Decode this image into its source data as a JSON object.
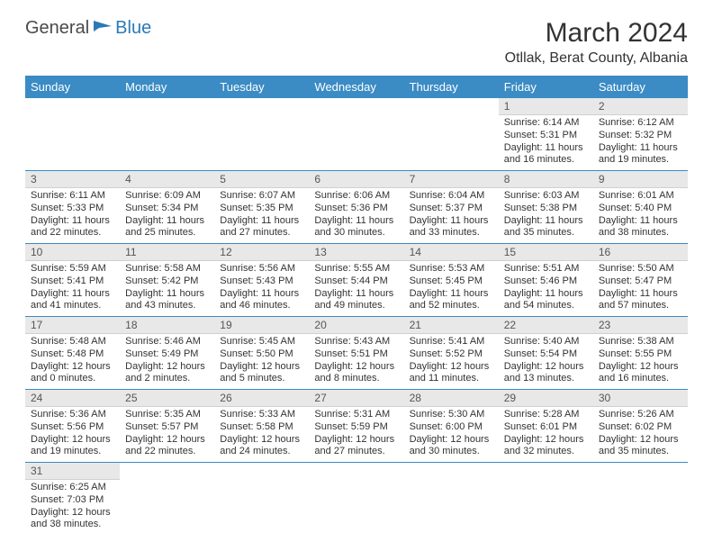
{
  "logo": {
    "general": "General",
    "blue": "Blue"
  },
  "title": "March 2024",
  "location": "Otllak, Berat County, Albania",
  "colors": {
    "header_bg": "#3b8bc4",
    "header_fg": "#ffffff",
    "daynum_bg": "#e8e8e8",
    "row_border": "#3b8bc4",
    "logo_blue": "#2a7ab8",
    "text": "#333333"
  },
  "weekdays": [
    "Sunday",
    "Monday",
    "Tuesday",
    "Wednesday",
    "Thursday",
    "Friday",
    "Saturday"
  ],
  "days": [
    {
      "n": 1,
      "sr": "6:14 AM",
      "ss": "5:31 PM",
      "dl": "11 hours and 16 minutes."
    },
    {
      "n": 2,
      "sr": "6:12 AM",
      "ss": "5:32 PM",
      "dl": "11 hours and 19 minutes."
    },
    {
      "n": 3,
      "sr": "6:11 AM",
      "ss": "5:33 PM",
      "dl": "11 hours and 22 minutes."
    },
    {
      "n": 4,
      "sr": "6:09 AM",
      "ss": "5:34 PM",
      "dl": "11 hours and 25 minutes."
    },
    {
      "n": 5,
      "sr": "6:07 AM",
      "ss": "5:35 PM",
      "dl": "11 hours and 27 minutes."
    },
    {
      "n": 6,
      "sr": "6:06 AM",
      "ss": "5:36 PM",
      "dl": "11 hours and 30 minutes."
    },
    {
      "n": 7,
      "sr": "6:04 AM",
      "ss": "5:37 PM",
      "dl": "11 hours and 33 minutes."
    },
    {
      "n": 8,
      "sr": "6:03 AM",
      "ss": "5:38 PM",
      "dl": "11 hours and 35 minutes."
    },
    {
      "n": 9,
      "sr": "6:01 AM",
      "ss": "5:40 PM",
      "dl": "11 hours and 38 minutes."
    },
    {
      "n": 10,
      "sr": "5:59 AM",
      "ss": "5:41 PM",
      "dl": "11 hours and 41 minutes."
    },
    {
      "n": 11,
      "sr": "5:58 AM",
      "ss": "5:42 PM",
      "dl": "11 hours and 43 minutes."
    },
    {
      "n": 12,
      "sr": "5:56 AM",
      "ss": "5:43 PM",
      "dl": "11 hours and 46 minutes."
    },
    {
      "n": 13,
      "sr": "5:55 AM",
      "ss": "5:44 PM",
      "dl": "11 hours and 49 minutes."
    },
    {
      "n": 14,
      "sr": "5:53 AM",
      "ss": "5:45 PM",
      "dl": "11 hours and 52 minutes."
    },
    {
      "n": 15,
      "sr": "5:51 AM",
      "ss": "5:46 PM",
      "dl": "11 hours and 54 minutes."
    },
    {
      "n": 16,
      "sr": "5:50 AM",
      "ss": "5:47 PM",
      "dl": "11 hours and 57 minutes."
    },
    {
      "n": 17,
      "sr": "5:48 AM",
      "ss": "5:48 PM",
      "dl": "12 hours and 0 minutes."
    },
    {
      "n": 18,
      "sr": "5:46 AM",
      "ss": "5:49 PM",
      "dl": "12 hours and 2 minutes."
    },
    {
      "n": 19,
      "sr": "5:45 AM",
      "ss": "5:50 PM",
      "dl": "12 hours and 5 minutes."
    },
    {
      "n": 20,
      "sr": "5:43 AM",
      "ss": "5:51 PM",
      "dl": "12 hours and 8 minutes."
    },
    {
      "n": 21,
      "sr": "5:41 AM",
      "ss": "5:52 PM",
      "dl": "12 hours and 11 minutes."
    },
    {
      "n": 22,
      "sr": "5:40 AM",
      "ss": "5:54 PM",
      "dl": "12 hours and 13 minutes."
    },
    {
      "n": 23,
      "sr": "5:38 AM",
      "ss": "5:55 PM",
      "dl": "12 hours and 16 minutes."
    },
    {
      "n": 24,
      "sr": "5:36 AM",
      "ss": "5:56 PM",
      "dl": "12 hours and 19 minutes."
    },
    {
      "n": 25,
      "sr": "5:35 AM",
      "ss": "5:57 PM",
      "dl": "12 hours and 22 minutes."
    },
    {
      "n": 26,
      "sr": "5:33 AM",
      "ss": "5:58 PM",
      "dl": "12 hours and 24 minutes."
    },
    {
      "n": 27,
      "sr": "5:31 AM",
      "ss": "5:59 PM",
      "dl": "12 hours and 27 minutes."
    },
    {
      "n": 28,
      "sr": "5:30 AM",
      "ss": "6:00 PM",
      "dl": "12 hours and 30 minutes."
    },
    {
      "n": 29,
      "sr": "5:28 AM",
      "ss": "6:01 PM",
      "dl": "12 hours and 32 minutes."
    },
    {
      "n": 30,
      "sr": "5:26 AM",
      "ss": "6:02 PM",
      "dl": "12 hours and 35 minutes."
    },
    {
      "n": 31,
      "sr": "6:25 AM",
      "ss": "7:03 PM",
      "dl": "12 hours and 38 minutes."
    }
  ],
  "labels": {
    "sunrise": "Sunrise:",
    "sunset": "Sunset:",
    "daylight": "Daylight:"
  },
  "layout": {
    "first_weekday_index": 5,
    "cols": 7
  }
}
